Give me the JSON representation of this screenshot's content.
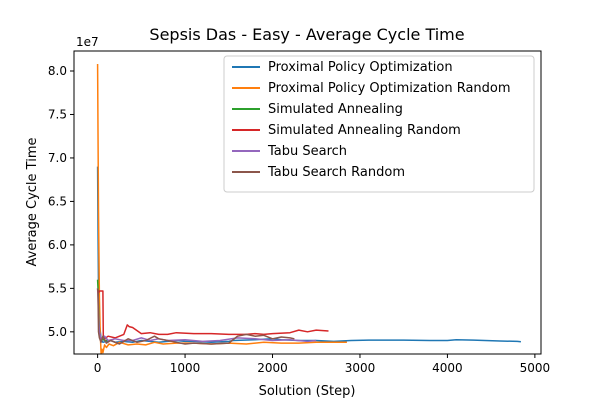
{
  "chart_data": {
    "type": "line",
    "title": "Sepsis Das - Easy - Average Cycle Time",
    "xlabel": "Solution (Step)",
    "ylabel": "Average Cycle Time",
    "y_scale_label": "1e7",
    "xlim": [
      -270,
      5070
    ],
    "ylim": [
      4.745,
      8.23
    ],
    "x_ticks": [
      0,
      1000,
      2000,
      3000,
      4000,
      5000
    ],
    "x_tick_labels": [
      "0",
      "1000",
      "2000",
      "3000",
      "4000",
      "5000"
    ],
    "y_ticks": [
      5.0,
      5.5,
      6.0,
      6.5,
      7.0,
      7.5,
      8.0
    ],
    "y_tick_labels": [
      "5.0",
      "5.5",
      "6.0",
      "6.5",
      "7.0",
      "7.5",
      "8.0"
    ],
    "grid": false,
    "legend_position": "top-right",
    "series": [
      {
        "name": "Proximal Policy Optimization",
        "color": "#1f77b4",
        "x": [
          0,
          5,
          10,
          20,
          40,
          60,
          100,
          150,
          200,
          300,
          400,
          500,
          600,
          700,
          800,
          900,
          1000,
          1100,
          1300,
          1500,
          1550,
          1800,
          2000,
          2100,
          2300,
          2500,
          2700,
          2900,
          3100,
          3500,
          3800,
          4000,
          4100,
          4300,
          4600,
          4800,
          4840
        ],
        "y": [
          6.9,
          6.2,
          5.5,
          5.1,
          4.92,
          4.88,
          4.89,
          4.9,
          4.88,
          4.89,
          4.88,
          4.9,
          4.89,
          4.88,
          4.89,
          4.9,
          4.89,
          4.89,
          4.88,
          4.89,
          4.9,
          4.91,
          4.92,
          4.91,
          4.9,
          4.9,
          4.89,
          4.9,
          4.905,
          4.905,
          4.9,
          4.9,
          4.91,
          4.905,
          4.895,
          4.89,
          4.885
        ]
      },
      {
        "name": "Proximal Policy Optimization Random",
        "color": "#ff7f0e",
        "x": [
          0,
          5,
          10,
          20,
          30,
          40,
          50,
          60,
          80,
          100,
          130,
          180,
          250,
          350,
          450,
          550,
          650,
          750,
          900,
          1100,
          1300,
          1500,
          1700,
          1900,
          2100,
          2300,
          2500,
          2700,
          2850
        ],
        "y": [
          8.08,
          7.3,
          6.4,
          5.4,
          5.0,
          4.75,
          4.8,
          4.76,
          4.85,
          4.82,
          4.86,
          4.84,
          4.88,
          4.85,
          4.86,
          4.85,
          4.88,
          4.86,
          4.87,
          4.87,
          4.86,
          4.87,
          4.86,
          4.88,
          4.87,
          4.87,
          4.88,
          4.88,
          4.88
        ]
      },
      {
        "name": "Simulated Annealing",
        "color": "#2ca02c",
        "x": [
          0,
          5,
          10,
          20,
          40,
          80,
          150
        ],
        "y": [
          5.6,
          5.5,
          5.3,
          5.0,
          4.93,
          4.9,
          4.9
        ]
      },
      {
        "name": "Simulated Annealing Random",
        "color": "#d62728",
        "x": [
          0,
          10,
          20,
          30,
          50,
          60,
          65,
          80,
          120,
          200,
          300,
          340,
          360,
          400,
          500,
          600,
          700,
          800,
          900,
          1100,
          1300,
          1500,
          1700,
          1800,
          1900,
          2000,
          2200,
          2300,
          2400,
          2500,
          2640
        ],
        "y": [
          5.45,
          5.45,
          5.47,
          5.47,
          5.47,
          5.47,
          4.95,
          4.92,
          4.95,
          4.93,
          4.97,
          5.08,
          5.06,
          5.05,
          4.98,
          4.99,
          4.97,
          4.97,
          4.99,
          4.98,
          4.98,
          4.97,
          4.97,
          4.98,
          4.97,
          4.98,
          4.99,
          5.02,
          5.0,
          5.02,
          5.01
        ]
      },
      {
        "name": "Tabu Search",
        "color": "#9467bd",
        "x": [
          0,
          5,
          10,
          20,
          40,
          80,
          120,
          200,
          300,
          400,
          500,
          600,
          700,
          800,
          1000,
          1200,
          1400,
          1600,
          1800,
          2000,
          2200,
          2400,
          2500
        ],
        "y": [
          5.5,
          5.4,
          5.2,
          5.0,
          4.92,
          4.95,
          4.9,
          4.92,
          4.9,
          4.9,
          4.93,
          4.9,
          4.92,
          4.9,
          4.91,
          4.89,
          4.9,
          4.93,
          4.92,
          4.9,
          4.91,
          4.89,
          4.9
        ]
      },
      {
        "name": "Tabu Search Random",
        "color": "#8c564b",
        "x": [
          0,
          5,
          10,
          20,
          40,
          60,
          100,
          150,
          250,
          350,
          450,
          550,
          650,
          700,
          800,
          900,
          1000,
          1100,
          1300,
          1500,
          1600,
          1700,
          1800,
          1900,
          2000,
          2100,
          2200,
          2250
        ],
        "y": [
          5.5,
          5.45,
          5.0,
          4.93,
          4.88,
          4.95,
          4.87,
          4.9,
          4.86,
          4.92,
          4.88,
          4.9,
          4.95,
          4.92,
          4.9,
          4.88,
          4.86,
          4.87,
          4.86,
          4.87,
          4.95,
          4.97,
          4.95,
          4.96,
          4.92,
          4.94,
          4.93,
          4.92
        ]
      }
    ]
  }
}
